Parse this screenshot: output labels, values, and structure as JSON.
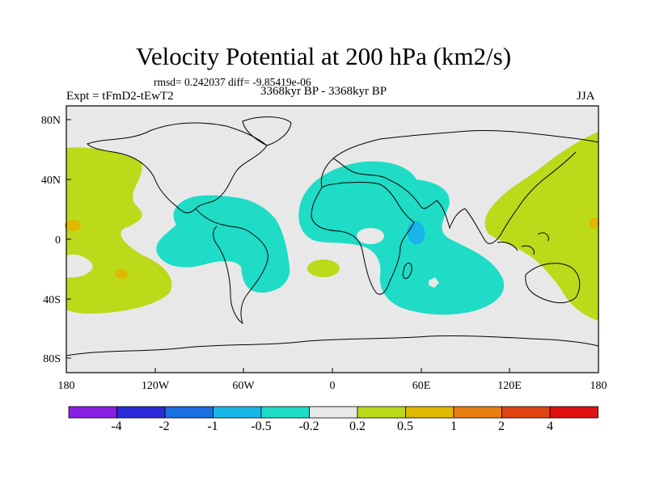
{
  "header": {
    "title": "Velocity Potential at 200 hPa (km2/s)",
    "stats": "rmsd= 0.242037 diff= -9.85419e-06",
    "experiment": "Expt = tFmD2-tEwT2",
    "period": "3368kyr BP - 3368kyr BP",
    "season": "JJA"
  },
  "axes": {
    "y_ticks": [
      "80N",
      "40N",
      "0",
      "40S",
      "80S"
    ],
    "x_ticks": [
      "180",
      "120W",
      "60W",
      "0",
      "60E",
      "120E",
      "180"
    ]
  },
  "colorbar": {
    "colors": [
      "#8a1fe6",
      "#2a2ad8",
      "#1a6fe0",
      "#18b6e8",
      "#1edcc6",
      "#e8e8e8",
      "#bcd91a",
      "#e0b800",
      "#e87d10",
      "#e04412",
      "#e01010"
    ],
    "labels": [
      "-4",
      "-2",
      "-1",
      "-0.5",
      "-0.2",
      "0.2",
      "0.5",
      "1",
      "2",
      "4"
    ]
  }
}
